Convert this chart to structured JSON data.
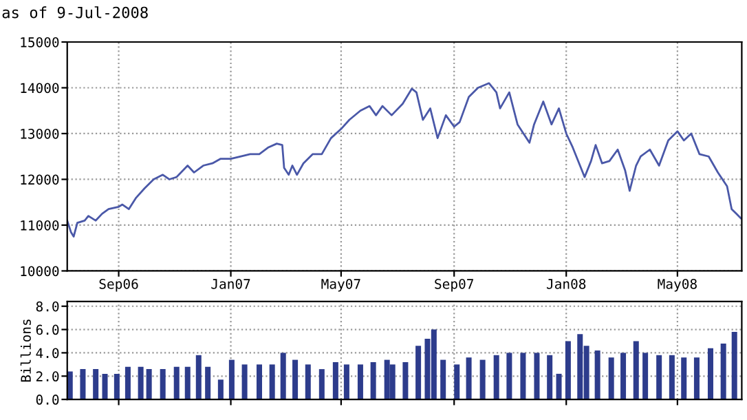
{
  "chart_data": [
    {
      "type": "line",
      "subtitle": "as of 9-Jul-2008",
      "color": "#4a58a8",
      "x": [
        "2006-07-07",
        "2006-07-11",
        "2006-07-14",
        "2006-07-18",
        "2006-07-26",
        "2006-07-30",
        "2006-08-07",
        "2006-08-14",
        "2006-08-21",
        "2006-09-01",
        "2006-09-05",
        "2006-09-12",
        "2006-09-20",
        "2006-09-29",
        "2006-10-09",
        "2006-10-19",
        "2006-10-26",
        "2006-11-03",
        "2006-11-15",
        "2006-11-22",
        "2006-12-02",
        "2006-12-12",
        "2006-12-21",
        "2007-01-01",
        "2007-01-12",
        "2007-01-22",
        "2007-02-01",
        "2007-02-11",
        "2007-02-20",
        "2007-02-26",
        "2007-02-28",
        "2007-03-05",
        "2007-03-09",
        "2007-03-14",
        "2007-03-21",
        "2007-03-31",
        "2007-04-10",
        "2007-04-20",
        "2007-05-01",
        "2007-05-10",
        "2007-05-22",
        "2007-06-01",
        "2007-06-08",
        "2007-06-15",
        "2007-06-25",
        "2007-07-07",
        "2007-07-17",
        "2007-07-22",
        "2007-07-29",
        "2007-08-06",
        "2007-08-14",
        "2007-08-23",
        "2007-09-01",
        "2007-09-07",
        "2007-09-17",
        "2007-09-27",
        "2007-10-09",
        "2007-10-17",
        "2007-10-21",
        "2007-10-31",
        "2007-11-09",
        "2007-11-22",
        "2007-11-27",
        "2007-12-07",
        "2007-12-16",
        "2007-12-24",
        "2008-01-01",
        "2008-01-08",
        "2008-01-21",
        "2008-01-28",
        "2008-02-02",
        "2008-02-09",
        "2008-02-17",
        "2008-02-26",
        "2008-03-05",
        "2008-03-10",
        "2008-03-17",
        "2008-03-22",
        "2008-04-01",
        "2008-04-11",
        "2008-04-21",
        "2008-05-01",
        "2008-05-08",
        "2008-05-16",
        "2008-05-25",
        "2008-06-04",
        "2008-06-14",
        "2008-06-24",
        "2008-06-29",
        "2008-07-04",
        "2008-07-09"
      ],
      "values": [
        11100,
        10850,
        10750,
        11050,
        11100,
        11200,
        11100,
        11250,
        11350,
        11400,
        11450,
        11350,
        11600,
        11800,
        12000,
        12100,
        12000,
        12050,
        12300,
        12150,
        12300,
        12350,
        12450,
        12450,
        12500,
        12550,
        12550,
        12700,
        12780,
        12750,
        12250,
        12100,
        12300,
        12100,
        12350,
        12550,
        12550,
        12900,
        13100,
        13300,
        13500,
        13600,
        13400,
        13600,
        13400,
        13650,
        13980,
        13900,
        13300,
        13550,
        12900,
        13400,
        13150,
        13250,
        13800,
        14000,
        14100,
        13900,
        13550,
        13900,
        13200,
        12800,
        13200,
        13700,
        13200,
        13550,
        13000,
        12700,
        12050,
        12400,
        12750,
        12350,
        12400,
        12650,
        12200,
        11750,
        12300,
        12500,
        12650,
        12300,
        12850,
        13050,
        12850,
        13000,
        12550,
        12500,
        12150,
        11850,
        11350,
        11250,
        11150
      ],
      "xlim": [
        "2006-07-07",
        "2008-07-10"
      ],
      "xticks": [
        {
          "value": "2006-09-01",
          "label": "Sep06"
        },
        {
          "value": "2007-01-01",
          "label": "Jan07"
        },
        {
          "value": "2007-05-01",
          "label": "May07"
        },
        {
          "value": "2007-09-01",
          "label": "Sep07"
        },
        {
          "value": "2008-01-01",
          "label": "Jan08"
        },
        {
          "value": "2008-05-01",
          "label": "May08"
        }
      ],
      "ylim": [
        10000,
        15000
      ],
      "yticks": [
        10000,
        11000,
        12000,
        13000,
        14000,
        15000
      ],
      "grid": true
    },
    {
      "type": "bar",
      "ylabel": "Billions",
      "color": "#2d3c8c",
      "tick_labels": "y",
      "x": [
        "2006-07-10",
        "2006-07-24",
        "2006-08-07",
        "2006-08-17",
        "2006-08-30",
        "2006-09-11",
        "2006-09-25",
        "2006-10-04",
        "2006-10-19",
        "2006-11-03",
        "2006-11-15",
        "2006-11-27",
        "2006-12-07",
        "2006-12-21",
        "2007-01-02",
        "2007-01-16",
        "2007-02-01",
        "2007-02-15",
        "2007-02-27",
        "2007-03-12",
        "2007-03-26",
        "2007-04-10",
        "2007-04-25",
        "2007-05-07",
        "2007-05-22",
        "2007-06-05",
        "2007-06-20",
        "2007-06-26",
        "2007-07-10",
        "2007-07-24",
        "2007-08-03",
        "2007-08-10",
        "2007-08-20",
        "2007-09-04",
        "2007-09-17",
        "2007-10-02",
        "2007-10-17",
        "2007-10-31",
        "2007-11-15",
        "2007-11-30",
        "2007-12-14",
        "2007-12-24",
        "2008-01-03",
        "2008-01-16",
        "2008-01-23",
        "2008-02-04",
        "2008-02-19",
        "2008-03-03",
        "2008-03-17",
        "2008-03-27",
        "2008-04-11",
        "2008-04-25",
        "2008-05-08",
        "2008-05-22",
        "2008-06-06",
        "2008-06-20",
        "2008-07-02"
      ],
      "values": [
        2.4,
        2.6,
        2.6,
        2.2,
        2.2,
        2.8,
        2.8,
        2.6,
        2.6,
        2.8,
        2.8,
        3.8,
        2.8,
        1.7,
        3.4,
        3.0,
        3.0,
        3.0,
        4.0,
        3.4,
        3.0,
        2.6,
        3.2,
        3.0,
        3.0,
        3.2,
        3.4,
        3.0,
        3.2,
        4.6,
        5.2,
        6.0,
        3.4,
        3.0,
        3.6,
        3.4,
        3.8,
        4.0,
        4.0,
        4.0,
        3.8,
        2.2,
        5.0,
        5.6,
        4.6,
        4.2,
        3.6,
        4.0,
        5.0,
        4.0,
        3.8,
        3.8,
        3.6,
        3.6,
        4.4,
        4.8,
        5.8
      ],
      "xlim": [
        "2006-07-07",
        "2008-07-10"
      ],
      "xticks": [
        {
          "value": "2006-09-01",
          "label": null
        },
        {
          "value": "2007-01-01",
          "label": null
        },
        {
          "value": "2007-05-01",
          "label": null
        },
        {
          "value": "2007-09-01",
          "label": null
        },
        {
          "value": "2008-01-01",
          "label": null
        },
        {
          "value": "2008-05-01",
          "label": null
        }
      ],
      "ylim": [
        0,
        8.4
      ],
      "yticks": [
        {
          "value": 0,
          "label": "0.0"
        },
        {
          "value": 2,
          "label": "2.0"
        },
        {
          "value": 4,
          "label": "4.0"
        },
        {
          "value": 6,
          "label": "6.0"
        },
        {
          "value": 8,
          "label": "8.0"
        }
      ],
      "grid": true
    }
  ]
}
